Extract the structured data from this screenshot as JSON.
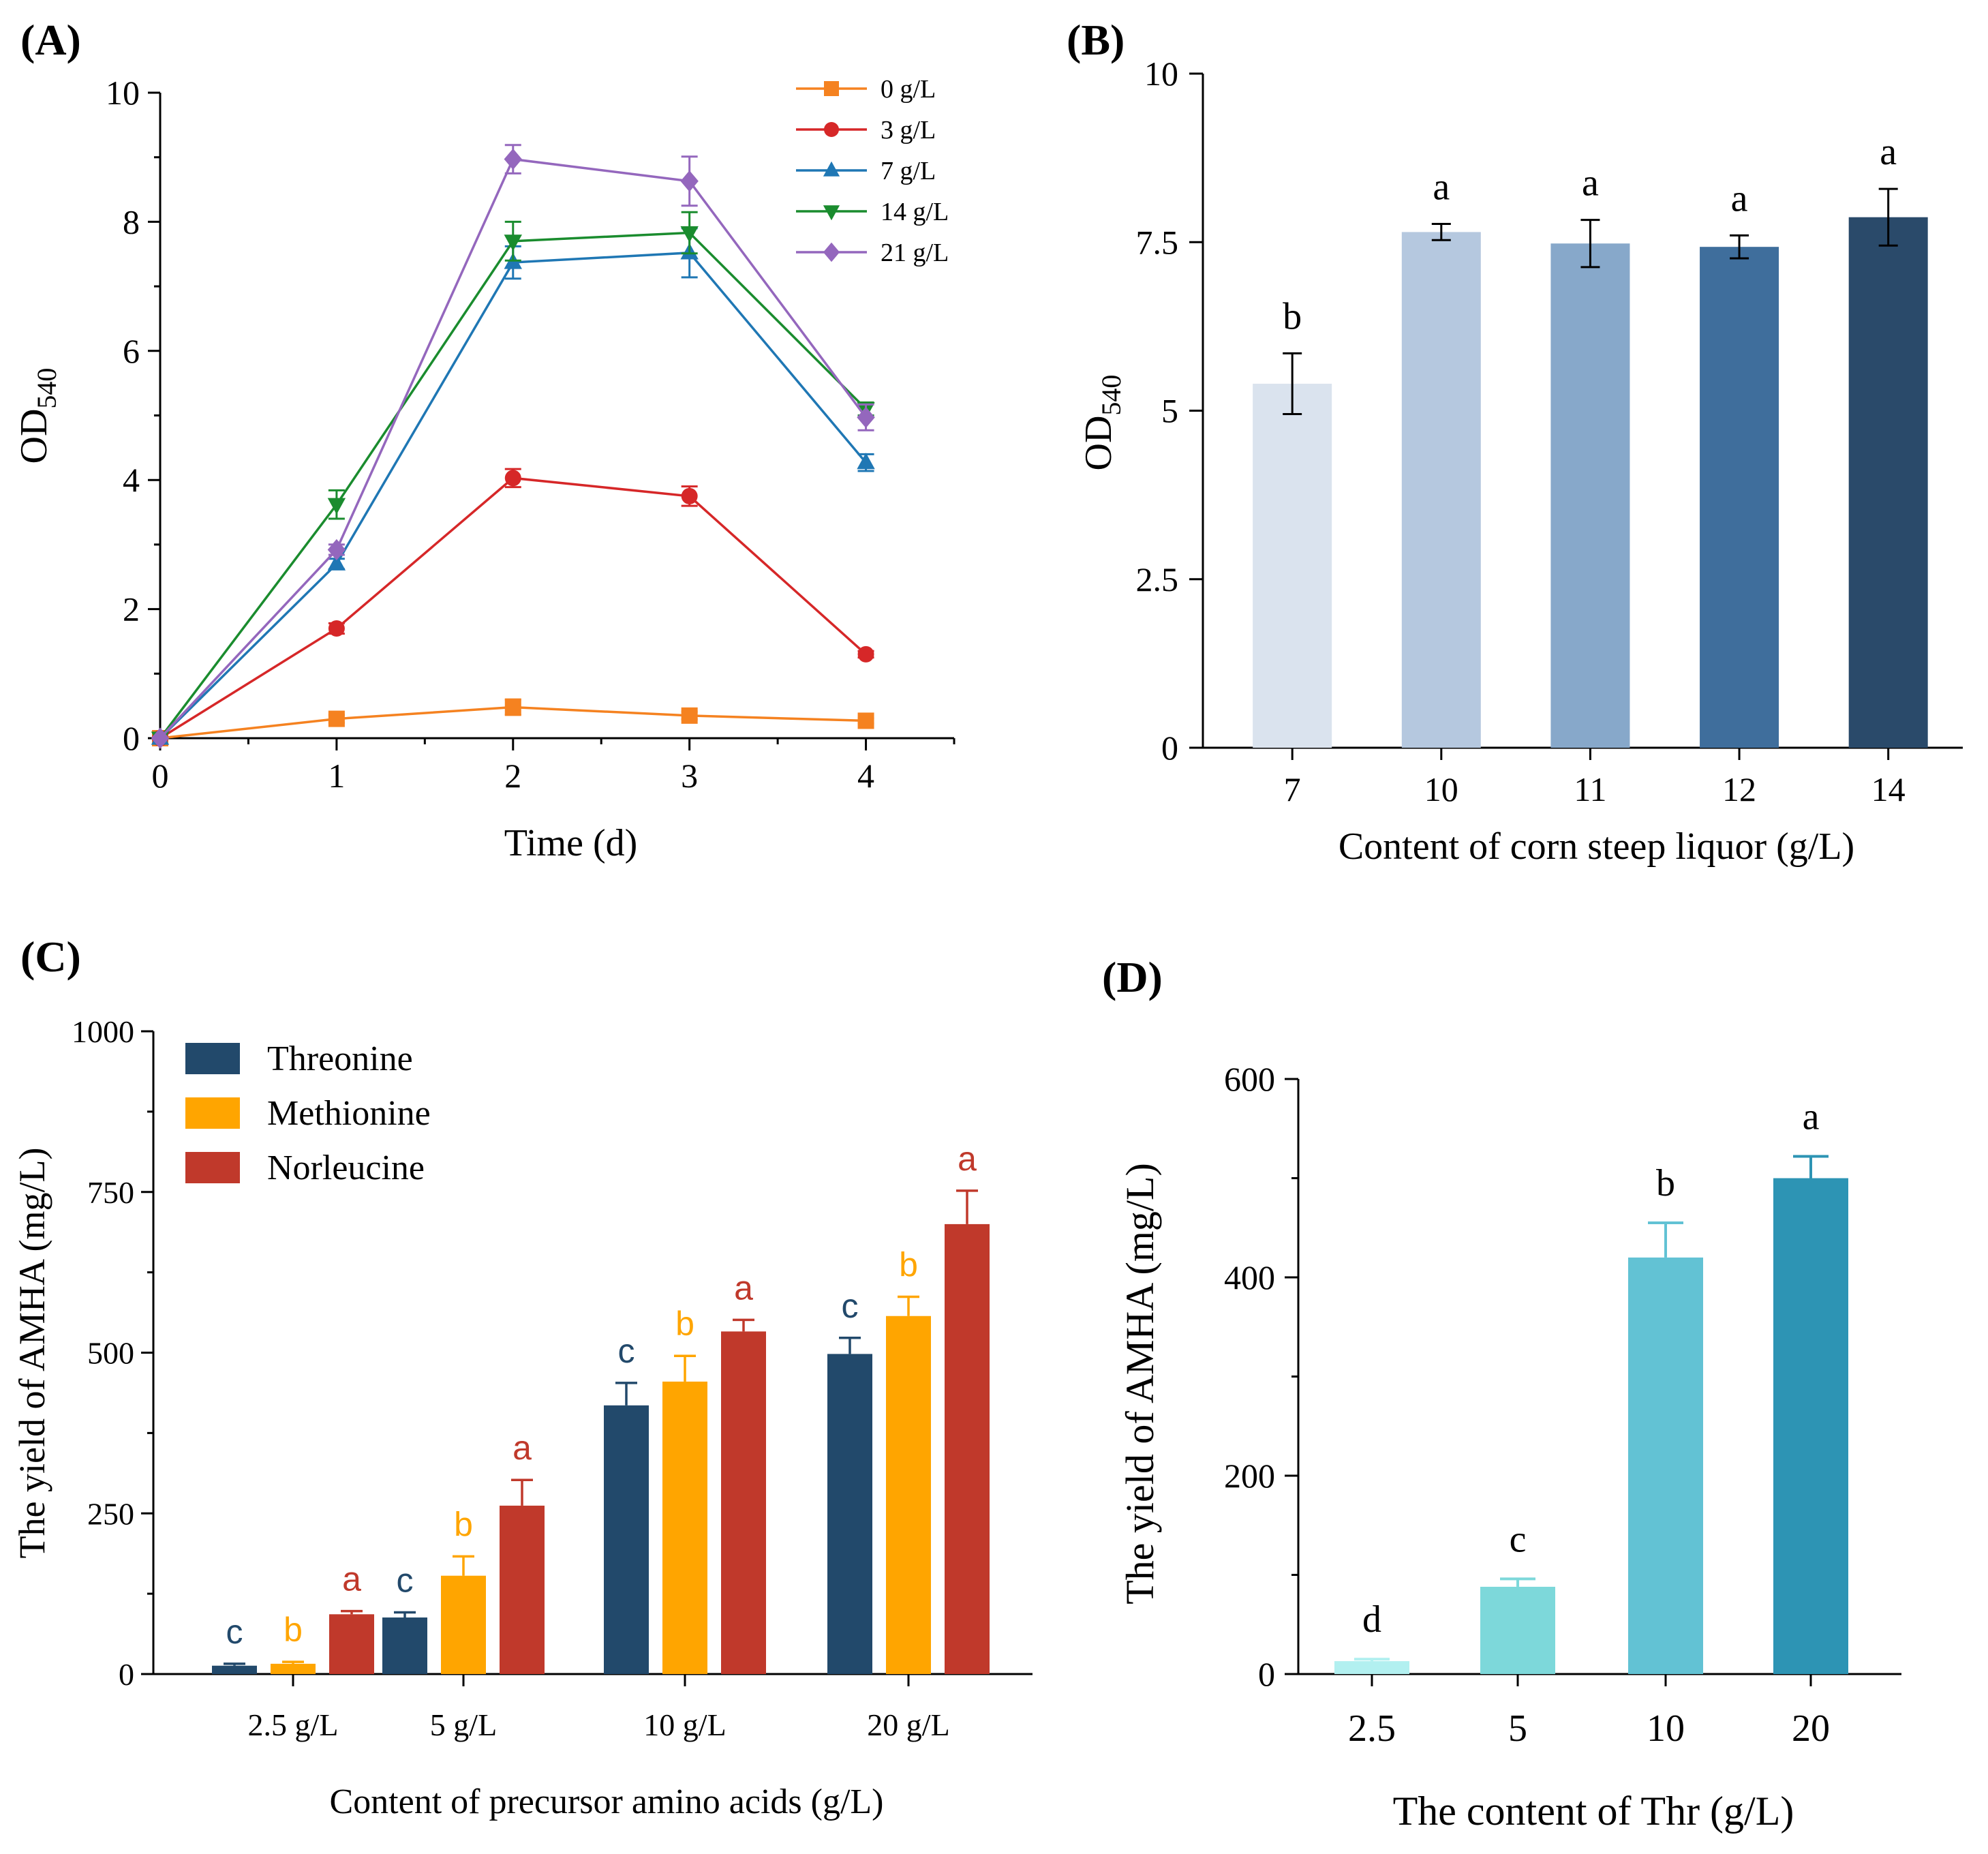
{
  "chart_data": [
    {
      "panel": "(A)",
      "type": "line",
      "x": [
        0,
        1,
        2,
        3,
        4
      ],
      "xlabel": "Time (d)",
      "ylabel_main": "OD",
      "ylabel_sub": "540",
      "xlim": [
        0,
        4.5
      ],
      "ylim": [
        0,
        10
      ],
      "xticks": [
        "0",
        "1",
        "2",
        "3",
        "4"
      ],
      "yticks": [
        "0",
        "2",
        "4",
        "6",
        "8",
        "10"
      ],
      "series": [
        {
          "name": "0 g/L",
          "color": "#F58220",
          "marker": "square",
          "values": [
            0,
            0.3,
            0.48,
            0.35,
            0.27
          ],
          "errors": [
            0,
            0.06,
            0.12,
            0.06,
            0.04
          ]
        },
        {
          "name": "3 g/L",
          "color": "#D62728",
          "marker": "circle",
          "values": [
            0,
            1.7,
            4.03,
            3.75,
            1.3
          ],
          "errors": [
            0,
            0.08,
            0.14,
            0.15,
            0.05
          ]
        },
        {
          "name": "7 g/L",
          "color": "#1F77B4",
          "marker": "triangle-up",
          "values": [
            0,
            2.7,
            7.37,
            7.52,
            4.27
          ],
          "errors": [
            0,
            0.08,
            0.25,
            0.38,
            0.13
          ]
        },
        {
          "name": "14 g/L",
          "color": "#1A8C2E",
          "marker": "triangle-down",
          "values": [
            0,
            3.62,
            7.7,
            7.83,
            5.1
          ],
          "errors": [
            0,
            0.22,
            0.3,
            0.32,
            0.1
          ]
        },
        {
          "name": "21 g/L",
          "color": "#9467BD",
          "marker": "diamond",
          "values": [
            0,
            2.92,
            8.97,
            8.63,
            4.97
          ],
          "errors": [
            0,
            0.08,
            0.22,
            0.38,
            0.2
          ]
        }
      ]
    },
    {
      "panel": "(B)",
      "type": "bar",
      "categories": [
        "7",
        "10",
        "11",
        "12",
        "14"
      ],
      "values": [
        5.4,
        7.65,
        7.48,
        7.43,
        7.87
      ],
      "errors": [
        0.45,
        0.12,
        0.35,
        0.17,
        0.42
      ],
      "letters": [
        "b",
        "a",
        "a",
        "a",
        "a"
      ],
      "colors": [
        "#DAE3EE",
        "#B5C8DF",
        "#87A8CA",
        "#3F6E9C",
        "#2A4A6A"
      ],
      "xlabel": "Content of corn steep liquor (g/L)",
      "ylabel_main": "OD",
      "ylabel_sub": "540",
      "ylim": [
        0,
        10
      ],
      "yticks": [
        "0",
        "2.5",
        "5",
        "7.5",
        "10"
      ]
    },
    {
      "panel": "(C)",
      "type": "bar",
      "categories": [
        "2.5 g/L",
        "5 g/L",
        "10 g/L",
        "20 g/L"
      ],
      "series": [
        {
          "name": "Threonine",
          "color": "#22496B",
          "letter_color": "#22496B",
          "values": [
            13,
            88,
            418,
            498
          ],
          "errors": [
            3,
            8,
            35,
            25
          ],
          "letters": [
            "c",
            "c",
            "c",
            "c"
          ]
        },
        {
          "name": "Methionine",
          "color": "#FFA500",
          "letter_color": "#FFA500",
          "values": [
            16,
            153,
            455,
            557
          ],
          "errors": [
            3,
            30,
            40,
            30
          ],
          "letters": [
            "b",
            "b",
            "b",
            "b"
          ]
        },
        {
          "name": "Norleucine",
          "color": "#C0392B",
          "letter_color": "#C0392B",
          "values": [
            93,
            262,
            533,
            700
          ],
          "errors": [
            5,
            40,
            18,
            52
          ],
          "letters": [
            "a",
            "a",
            "a",
            "a"
          ]
        }
      ],
      "xlabel": "Content of precursor amino acids (g/L)",
      "ylabel": "The yield of AMHA (mg/L)",
      "ylim": [
        0,
        1000
      ],
      "yticks": [
        "0",
        "250",
        "500",
        "750",
        "1000"
      ],
      "legend": "top-left"
    },
    {
      "panel": "(D)",
      "type": "bar",
      "categories": [
        "2.5",
        "5",
        "10",
        "20"
      ],
      "values": [
        13,
        88,
        420,
        500
      ],
      "errors": [
        2,
        8,
        35,
        22
      ],
      "letters": [
        "d",
        "c",
        "b",
        "a"
      ],
      "colors": [
        "#B2F0F0",
        "#7DD8DA",
        "#62C2D4",
        "#2D94B4"
      ],
      "xlabel": "The content of Thr (g/L)",
      "ylabel": "The yield of AMHA (mg/L)",
      "ylim": [
        0,
        600
      ],
      "yticks": [
        "0",
        "200",
        "400",
        "600"
      ]
    }
  ]
}
